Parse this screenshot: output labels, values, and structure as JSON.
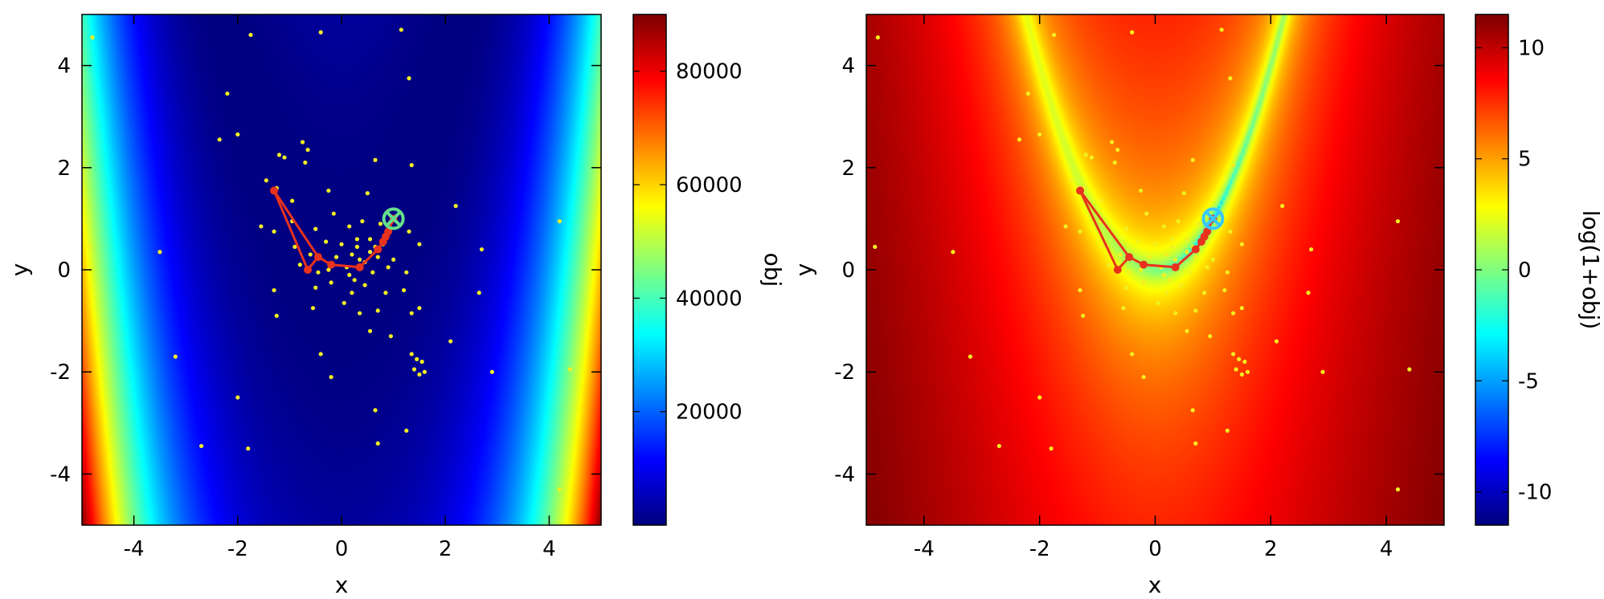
{
  "chart_data": [
    {
      "type": "heatmap",
      "title": "",
      "xlabel": "x",
      "ylabel": "y",
      "xlim": [
        -5,
        5
      ],
      "ylim": [
        -5,
        5
      ],
      "x_ticks": [
        -4,
        -2,
        0,
        2,
        4
      ],
      "y_ticks": [
        -4,
        -2,
        0,
        2,
        4
      ],
      "x_tick_labels": [
        "-4",
        "-2",
        "0",
        "2",
        "4"
      ],
      "y_tick_labels": [
        "-4",
        "-2",
        "0",
        "2",
        "4"
      ],
      "colorbar": {
        "label": "obj",
        "label_orientation": "rotated-upside-down",
        "range": [
          0,
          90000
        ],
        "ticks": [
          20000,
          40000,
          60000,
          80000
        ],
        "tick_labels": [
          "20000",
          "40000",
          "60000",
          "80000"
        ],
        "colormap": "jet"
      },
      "field": "(1-x)^2 + 100*(y-x^2)^2",
      "scale": "linear",
      "grid": false
    },
    {
      "type": "heatmap",
      "title": "",
      "xlabel": "x",
      "ylabel": "y",
      "xlim": [
        -5,
        5
      ],
      "ylim": [
        -5,
        5
      ],
      "x_ticks": [
        -4,
        -2,
        0,
        2,
        4
      ],
      "y_ticks": [
        -4,
        -2,
        0,
        2,
        4
      ],
      "x_tick_labels": [
        "-4",
        "-2",
        "0",
        "2",
        "4"
      ],
      "y_tick_labels": [
        "-4",
        "-2",
        "0",
        "2",
        "4"
      ],
      "colorbar": {
        "label": "log(1+obj)",
        "label_orientation": "rotated-upside-down",
        "range": [
          -11.5,
          11.5
        ],
        "ticks": [
          -10,
          -5,
          0,
          5,
          10
        ],
        "tick_labels": [
          "-10",
          "-5",
          "0",
          "5",
          "10"
        ],
        "colormap": "jet"
      },
      "field": "log((1-x)^2 + 100*(y-x^2)^2)",
      "scale": "log",
      "grid": false
    }
  ],
  "samples": {
    "color": "#f2f020",
    "points": [
      [
        -4.8,
        4.55
      ],
      [
        -0.4,
        4.65
      ],
      [
        1.15,
        4.7
      ],
      [
        -1.75,
        4.6
      ],
      [
        1.3,
        3.75
      ],
      [
        -2.2,
        3.45
      ],
      [
        -2.35,
        2.55
      ],
      [
        -2.0,
        2.65
      ],
      [
        -0.75,
        2.5
      ],
      [
        -0.65,
        2.35
      ],
      [
        -1.2,
        2.25
      ],
      [
        -1.1,
        2.2
      ],
      [
        -0.7,
        2.1
      ],
      [
        0.65,
        2.15
      ],
      [
        1.35,
        2.05
      ],
      [
        -1.25,
        1.6
      ],
      [
        -1.45,
        1.75
      ],
      [
        -0.95,
        1.35
      ],
      [
        -0.25,
        1.55
      ],
      [
        0.5,
        1.5
      ],
      [
        2.2,
        1.25
      ],
      [
        -1.55,
        0.85
      ],
      [
        -1.3,
        0.75
      ],
      [
        -0.95,
        0.95
      ],
      [
        -0.5,
        0.8
      ],
      [
        -0.15,
        1.1
      ],
      [
        0.15,
        0.85
      ],
      [
        0.4,
        0.95
      ],
      [
        0.75,
        0.9
      ],
      [
        1.3,
        0.75
      ],
      [
        -0.9,
        0.45
      ],
      [
        -0.6,
        0.3
      ],
      [
        -0.3,
        0.55
      ],
      [
        0.0,
        0.5
      ],
      [
        0.3,
        0.6
      ],
      [
        0.55,
        0.35
      ],
      [
        1.5,
        0.5
      ],
      [
        2.7,
        0.4
      ],
      [
        -0.8,
        0.1
      ],
      [
        -0.45,
        -0.05
      ],
      [
        0.1,
        0.05
      ],
      [
        0.35,
        0.2
      ],
      [
        0.7,
        0.25
      ],
      [
        1.0,
        0.2
      ],
      [
        1.25,
        -0.05
      ],
      [
        -1.3,
        -0.4
      ],
      [
        -0.5,
        -0.35
      ],
      [
        -0.2,
        -0.25
      ],
      [
        0.2,
        -0.45
      ],
      [
        0.45,
        -0.3
      ],
      [
        0.85,
        -0.45
      ],
      [
        1.2,
        -0.4
      ],
      [
        1.5,
        -0.75
      ],
      [
        2.65,
        -0.45
      ],
      [
        -1.25,
        -0.9
      ],
      [
        -0.55,
        -0.75
      ],
      [
        0.05,
        -0.65
      ],
      [
        0.35,
        -0.85
      ],
      [
        0.7,
        -0.8
      ],
      [
        1.35,
        -0.85
      ],
      [
        -0.4,
        -1.65
      ],
      [
        0.55,
        -1.2
      ],
      [
        0.95,
        -1.3
      ],
      [
        -0.2,
        -2.1
      ],
      [
        2.1,
        -1.4
      ],
      [
        1.35,
        -1.65
      ],
      [
        1.45,
        -1.75
      ],
      [
        1.55,
        -1.8
      ],
      [
        1.4,
        -1.95
      ],
      [
        1.6,
        -2.0
      ],
      [
        1.5,
        -2.05
      ],
      [
        2.9,
        -2.0
      ],
      [
        -3.2,
        -1.7
      ],
      [
        -2.0,
        -2.5
      ],
      [
        0.65,
        -2.75
      ],
      [
        1.25,
        -3.15
      ],
      [
        -2.7,
        -3.45
      ],
      [
        -1.8,
        -3.5
      ],
      [
        0.7,
        -3.4
      ],
      [
        4.2,
        -4.3
      ],
      [
        4.4,
        -1.95
      ],
      [
        -4.85,
        0.45
      ],
      [
        -3.5,
        0.35
      ],
      [
        4.2,
        0.95
      ],
      [
        0.2,
        0.3
      ],
      [
        0.3,
        0.45
      ],
      [
        0.45,
        0.15
      ],
      [
        0.55,
        0.6
      ],
      [
        0.65,
        0.45
      ],
      [
        0.8,
        0.5
      ],
      [
        0.15,
        -0.1
      ],
      [
        -0.1,
        0.25
      ],
      [
        0.25,
        -0.2
      ],
      [
        0.6,
        -0.05
      ],
      [
        -0.25,
        0.0
      ],
      [
        0.9,
        0.05
      ]
    ]
  },
  "optimizer_path": {
    "color": "#e8321e",
    "points": [
      [
        -1.3,
        1.55
      ],
      [
        -0.65,
        0.0
      ],
      [
        -0.45,
        0.25
      ],
      [
        -0.2,
        0.1
      ],
      [
        0.35,
        0.05
      ],
      [
        0.7,
        0.4
      ],
      [
        0.8,
        0.55
      ],
      [
        0.85,
        0.65
      ],
      [
        0.9,
        0.75
      ],
      [
        1.0,
        1.0
      ]
    ],
    "branch": [
      [
        -1.3,
        1.55
      ],
      [
        -0.45,
        0.25
      ]
    ]
  },
  "optimum": {
    "x": 1,
    "y": 1,
    "marker": "circle-cross",
    "color_left": "#66e08c",
    "color_right": "#38c8ff"
  }
}
